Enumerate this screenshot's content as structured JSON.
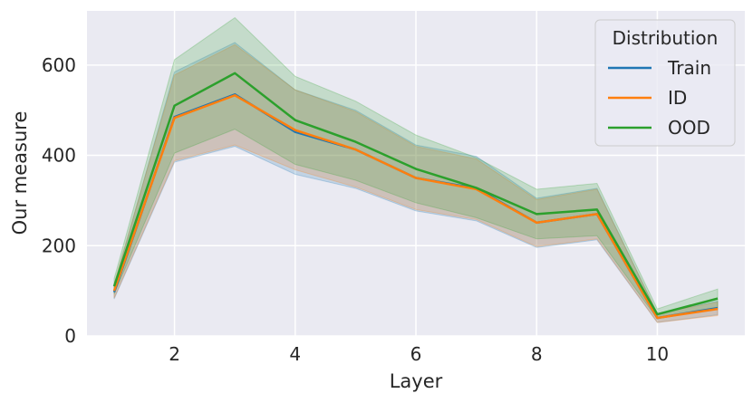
{
  "chart_data": {
    "type": "line",
    "xlabel": "Layer",
    "ylabel": "Our measure",
    "xlim": [
      0.55,
      11.45
    ],
    "ylim": [
      0,
      720
    ],
    "xticks": [
      2,
      4,
      6,
      8,
      10
    ],
    "yticks": [
      0,
      200,
      400,
      600
    ],
    "grid": true,
    "legend": {
      "title": "Distribution",
      "placement": "top-right"
    },
    "x": [
      1,
      2,
      3,
      4,
      5,
      6,
      7,
      8,
      9,
      10,
      11
    ],
    "series": [
      {
        "name": "Train",
        "color": "#1f77b4",
        "values": [
          97,
          485,
          535,
          452,
          413,
          350,
          327,
          251,
          270,
          40,
          62
        ],
        "lower": [
          82,
          385,
          420,
          358,
          327,
          277,
          255,
          196,
          213,
          30,
          47
        ],
        "upper": [
          112,
          585,
          650,
          545,
          500,
          423,
          398,
          305,
          327,
          50,
          77
        ]
      },
      {
        "name": "ID",
        "color": "#ff7f0e",
        "values": [
          100,
          483,
          533,
          456,
          413,
          350,
          325,
          251,
          270,
          40,
          60
        ],
        "lower": [
          84,
          388,
          423,
          368,
          330,
          280,
          258,
          198,
          215,
          30,
          45
        ],
        "upper": [
          116,
          578,
          645,
          545,
          497,
          420,
          392,
          302,
          325,
          50,
          75
        ]
      },
      {
        "name": "OOD",
        "color": "#2ca02c",
        "values": [
          110,
          510,
          582,
          478,
          430,
          370,
          328,
          270,
          280,
          48,
          83
        ],
        "lower": [
          93,
          405,
          458,
          380,
          345,
          295,
          262,
          215,
          222,
          38,
          62
        ],
        "upper": [
          127,
          612,
          705,
          575,
          520,
          445,
          395,
          325,
          338,
          60,
          104
        ]
      }
    ]
  }
}
